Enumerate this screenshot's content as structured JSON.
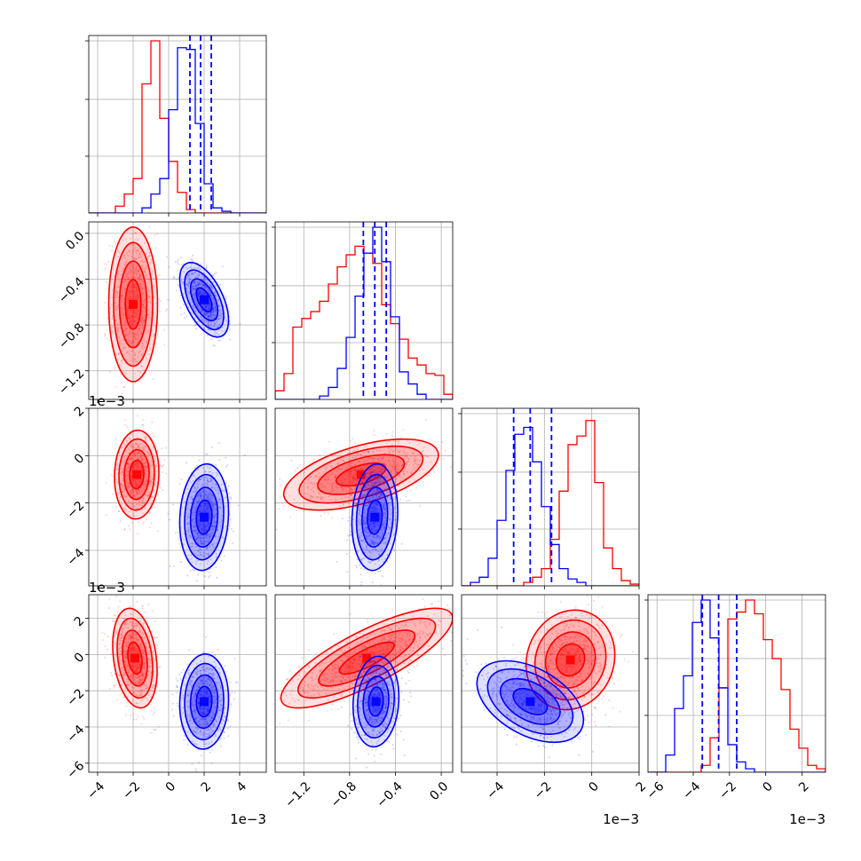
{
  "chart_data": {
    "type": "corner",
    "n_params": 4,
    "colors": {
      "red": "#ff0000",
      "blue": "#0000ff",
      "grid": "#b0b0b0",
      "frame": "#000000"
    },
    "grid": true,
    "offset_label": "1e−3",
    "params": [
      {
        "range": [
          -4.5,
          5.5
        ],
        "ticks": [
          -4,
          -2,
          0,
          2,
          4
        ],
        "tick_labels": [
          "−4",
          "−2",
          "0",
          "2",
          "4"
        ],
        "offset": "1e−3"
      },
      {
        "range": [
          -1.45,
          0.1
        ],
        "ticks": [
          -1.2,
          -0.8,
          -0.4,
          0.0
        ],
        "tick_labels": [
          "−1.2",
          "−0.8",
          "−0.4",
          "0.0"
        ],
        "offset": ""
      },
      {
        "range": [
          -5.5,
          2.0
        ],
        "ticks": [
          -4,
          -2,
          0,
          2
        ],
        "tick_labels": [
          "−4",
          "−2",
          "0",
          "2"
        ],
        "offset": "1e−3"
      },
      {
        "range": [
          -6.5,
          3.3
        ],
        "ticks": [
          -6,
          -4,
          -2,
          0,
          2
        ],
        "tick_labels": [
          "−6",
          "−4",
          "−2",
          "0",
          "2"
        ],
        "offset": "1e−3"
      }
    ],
    "histograms": [
      {
        "param": 0,
        "bins": [
          -4.5,
          5.5,
          20
        ],
        "red": [
          0,
          0,
          0,
          0.04,
          0.11,
          0.2,
          0.75,
          1.0,
          0.55,
          0.3,
          0.12,
          0.02,
          0,
          0,
          0,
          0,
          0,
          0,
          0,
          0
        ],
        "blue": [
          0,
          0,
          0,
          0,
          0,
          0,
          0.03,
          0.11,
          0.2,
          0.6,
          0.96,
          0.95,
          0.52,
          0.17,
          0.03,
          0.01,
          0,
          0,
          0,
          0
        ],
        "blue_quantiles": [
          1.2,
          1.8,
          2.4
        ]
      },
      {
        "param": 1,
        "bins": [
          -1.45,
          0.1,
          20
        ],
        "red": [
          0.05,
          0.15,
          0.42,
          0.47,
          0.51,
          0.57,
          0.67,
          0.77,
          0.84,
          0.89,
          0.85,
          0.79,
          0.55,
          0.44,
          0.35,
          0.24,
          0.2,
          0.15,
          0.14,
          0.03
        ],
        "blue": [
          0,
          0,
          0,
          0,
          0,
          0.02,
          0.07,
          0.18,
          0.36,
          0.6,
          0.85,
          1.0,
          0.8,
          0.48,
          0.16,
          0.09,
          0.03,
          0,
          0,
          0
        ],
        "blue_quantiles": [
          -0.68,
          -0.58,
          -0.48
        ]
      },
      {
        "param": 2,
        "bins": [
          -5.5,
          2.0,
          20
        ],
        "red": [
          0,
          0,
          0,
          0,
          0,
          0,
          0,
          0.02,
          0.05,
          0.1,
          0.27,
          0.55,
          0.82,
          0.87,
          0.96,
          0.6,
          0.22,
          0.1,
          0.03,
          0.01
        ],
        "blue": [
          0,
          0.02,
          0.05,
          0.16,
          0.38,
          0.67,
          0.88,
          0.92,
          0.72,
          0.46,
          0.24,
          0.1,
          0.04,
          0.02,
          0,
          0,
          0,
          0,
          0,
          0
        ],
        "blue_quantiles": [
          -3.3,
          -2.6,
          -1.7
        ]
      },
      {
        "param": 3,
        "bins": [
          -6.5,
          3.3,
          20
        ],
        "red": [
          0,
          0,
          0,
          0,
          0,
          0,
          0.04,
          0.2,
          0.49,
          0.89,
          0.93,
          1.0,
          0.92,
          0.77,
          0.66,
          0.48,
          0.25,
          0.14,
          0.04,
          0.02
        ],
        "blue": [
          0,
          0,
          0.1,
          0.37,
          0.56,
          0.87,
          1.0,
          0.78,
          0.49,
          0.16,
          0.06,
          0.02,
          0,
          0,
          0,
          0,
          0,
          0,
          0,
          0
        ],
        "blue_quantiles": [
          -3.5,
          -2.6,
          -1.6
        ]
      }
    ],
    "blobs": {
      "r1_0": {
        "red": {
          "cx": -2.0,
          "cy": -0.62,
          "sx": 0.55,
          "sy": 0.27,
          "rho": 0
        },
        "blue": {
          "cx": 2.0,
          "cy": -0.58,
          "sx": 0.55,
          "sy": 0.13,
          "rho": -0.55
        }
      },
      "r2_0": {
        "red": {
          "cx": -1.8,
          "cy": -0.8,
          "sx": 0.5,
          "sy": 0.75,
          "rho": 0.05
        },
        "blue": {
          "cx": 2.0,
          "cy": -2.6,
          "sx": 0.55,
          "sy": 0.9,
          "rho": 0.1
        }
      },
      "r2_1": {
        "red": {
          "cx": -0.7,
          "cy": -0.8,
          "sx": 0.27,
          "sy": 0.6,
          "rho": 0.55
        },
        "blue": {
          "cx": -0.58,
          "cy": -2.6,
          "sx": 0.08,
          "sy": 0.9,
          "rho": 0.1
        }
      },
      "r3_0": {
        "red": {
          "cx": -1.9,
          "cy": -0.2,
          "sx": 0.5,
          "sy": 1.1,
          "rho": -0.25
        },
        "blue": {
          "cx": 2.0,
          "cy": -2.6,
          "sx": 0.55,
          "sy": 1.05,
          "rho": 0.05
        }
      },
      "r3_1": {
        "red": {
          "cx": -0.65,
          "cy": -0.2,
          "sx": 0.3,
          "sy": 1.1,
          "rho": 0.8
        },
        "blue": {
          "cx": -0.57,
          "cy": -2.6,
          "sx": 0.08,
          "sy": 1.0,
          "rho": 0.1
        }
      },
      "r3_2": {
        "red": {
          "cx": -0.9,
          "cy": -0.3,
          "sx": 0.75,
          "sy": 1.1,
          "rho": 0.1
        },
        "blue": {
          "cx": -2.6,
          "cy": -2.6,
          "sx": 0.9,
          "sy": 0.9,
          "rho": -0.45
        }
      }
    }
  }
}
